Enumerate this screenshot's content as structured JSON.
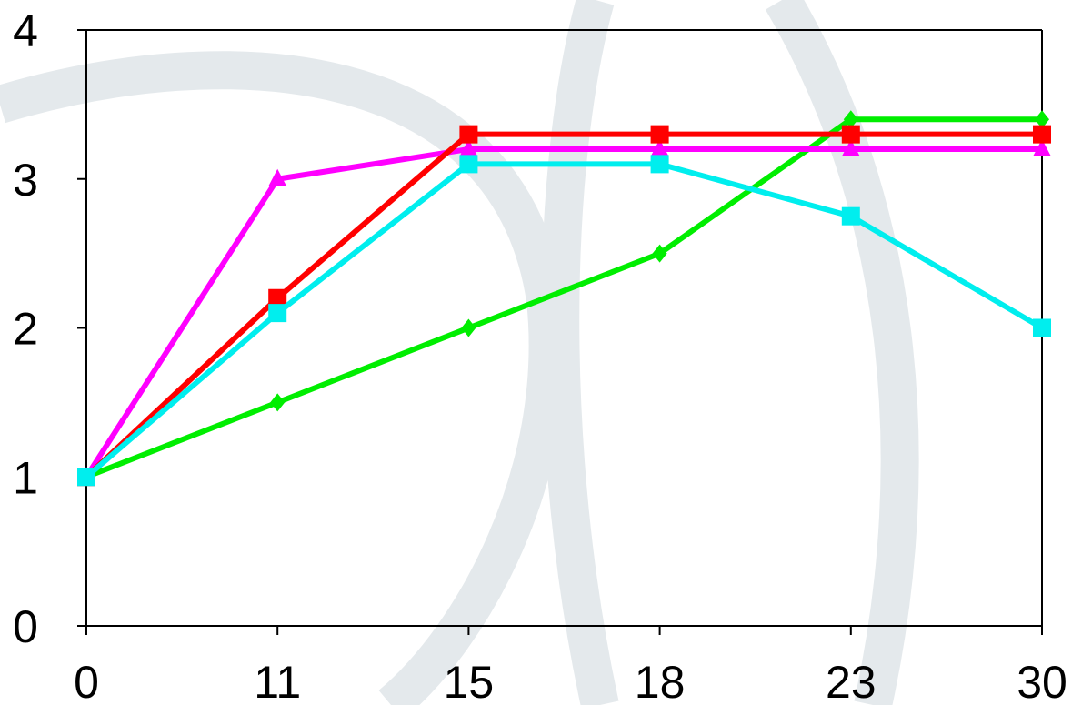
{
  "chart_data": {
    "type": "line",
    "x": [
      "0",
      "11",
      "15",
      "18",
      "23",
      "30"
    ],
    "yticks": [
      "0",
      "1",
      "2",
      "3",
      "4"
    ],
    "ylim": [
      0,
      4
    ],
    "grid": false,
    "legend": "none",
    "series": [
      {
        "color": "#00ee00",
        "marker": "diamond",
        "values": [
          1,
          1.5,
          2,
          2.5,
          3.4,
          3.4
        ]
      },
      {
        "color": "#ff00ff",
        "marker": "triangle",
        "values": [
          1,
          3,
          3.2,
          3.2,
          3.2,
          3.2
        ]
      },
      {
        "color": "#ff0000",
        "marker": "square",
        "values": [
          1,
          2.2,
          3.3,
          3.3,
          3.3,
          3.3
        ]
      },
      {
        "color": "#00eeee",
        "marker": "square",
        "values": [
          1,
          2.1,
          3.1,
          3.1,
          2.75,
          2
        ]
      }
    ]
  }
}
